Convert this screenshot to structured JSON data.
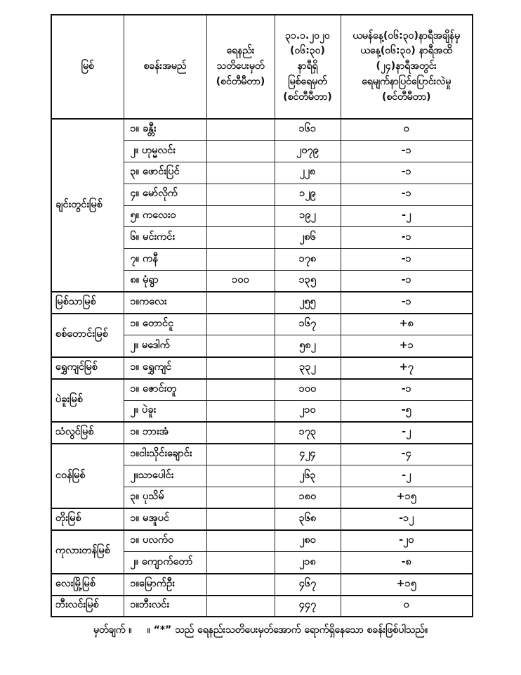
{
  "colors": {
    "background": "#ffffff",
    "text": "#111111",
    "border": "#111111"
  },
  "table": {
    "headers": {
      "col1": "မြစ်",
      "col2": "စခန်းအမည်",
      "col3": "ရေနည်း\nသတိပေးမှတ်\n(စင်တီမီတာ)",
      "col4": "၃၁.၁.၂၀၂၀\n(၀၆:၃၀)\nနာရီရှိ\nမြစ်ရေမှတ်\n(စင်တီမီတာ)",
      "col5": "ယမန်နေ့(၀၆:၃၀)နာရီအချိန်မှ\nယနေ့(၀၆:၃၀) နာရီအထိ\n(၂၄)နာရီအတွင်း\nရေမျက်နာပြင်ပြောင်းလဲမှု\n(စင်တီမီတာ)"
    },
    "groups": [
      {
        "river": "ချင်းတွင်းမြစ်",
        "rows": [
          {
            "station": "၁။ ခန္တီး",
            "warning": "",
            "level": "၁၆၁",
            "change": "၀"
          },
          {
            "station": "၂။ ဟုမ္မလင်း",
            "warning": "",
            "level": "၂၀၇၉",
            "change": "-၁"
          },
          {
            "station": "၃။ ဖောင်းပြင်",
            "warning": "",
            "level": "၂၂၈",
            "change": "-၁"
          },
          {
            "station": "၄။ မော်လိုက်",
            "warning": "",
            "level": "၁၂၉",
            "change": "-၁"
          },
          {
            "station": "၅။ ကလေးဝ",
            "warning": "",
            "level": "၁၉၂",
            "change": "-၂"
          },
          {
            "station": "၆။ မင်းကင်း",
            "warning": "",
            "level": "၂၈၆",
            "change": "-၁"
          },
          {
            "station": "၇။ ကနီ",
            "warning": "",
            "level": "၁၇၈",
            "change": "-၁"
          },
          {
            "station": "၈။ မုံရွာ",
            "warning": "၁၀၀",
            "level": "၁၃၅",
            "change": "-၁"
          }
        ]
      },
      {
        "river": "မြစ်သာမြစ်",
        "rows": [
          {
            "station": "၁။ကလေး",
            "warning": "",
            "level": "၂၅၅",
            "change": "-၁"
          }
        ]
      },
      {
        "river": "စစ်တောင်းမြစ်",
        "rows": [
          {
            "station": "၁။ တောင်ငူ",
            "warning": "",
            "level": "၁၆၇",
            "change": "+၈"
          },
          {
            "station": "၂။ မဒေါက်",
            "warning": "",
            "level": "၅၈၂",
            "change": "+၁"
          }
        ]
      },
      {
        "river": "ရွှေကျင်မြစ်",
        "rows": [
          {
            "station": "၁။ ရွှေကျင်",
            "warning": "",
            "level": "၃၃၂",
            "change": "+၇"
          }
        ]
      },
      {
        "river": "ပဲခူးမြစ်",
        "rows": [
          {
            "station": "၁။ ဇောင်းတူ",
            "warning": "",
            "level": "၁၀၀",
            "change": "-၁"
          },
          {
            "station": "၂။ ပဲခူး",
            "warning": "",
            "level": "၂၁၀",
            "change": "-၅"
          }
        ]
      },
      {
        "river": "သံလွင်မြစ်",
        "rows": [
          {
            "station": "၁။ ဘားအံ",
            "warning": "",
            "level": "၁၇၃",
            "change": "-၂"
          }
        ]
      },
      {
        "river": "ငဝန်မြစ်",
        "rows": [
          {
            "station": "၁။ငါးသိုင်းချောင်း",
            "warning": "",
            "level": "၄၂၄",
            "change": "-၄"
          },
          {
            "station": "၂။သာပေါင်း",
            "warning": "",
            "level": "၂၆၃",
            "change": "-၂"
          },
          {
            "station": "၃။ ပုသိမ်",
            "warning": "",
            "level": "၁၈၀",
            "change": "+၁၅"
          }
        ]
      },
      {
        "river": "တိုးမြစ်",
        "rows": [
          {
            "station": "၁။ မအူပင်",
            "warning": "",
            "level": "၃၆၈",
            "change": "-၁၂"
          }
        ]
      },
      {
        "river": "ကုလားတန်မြစ်",
        "rows": [
          {
            "station": "၁။ ပလက်ဝ",
            "warning": "",
            "level": "၂၈၀",
            "change": "-၂၀"
          },
          {
            "station": "၂။ ကျောက်တော်",
            "warning": "",
            "level": "၂၁၈",
            "change": "-၈"
          }
        ]
      },
      {
        "river": "လေးမြို့မြစ်",
        "rows": [
          {
            "station": "၁။မြောက်ဦး",
            "warning": "",
            "level": "၄၆၇",
            "change": "+၁၅"
          }
        ]
      },
      {
        "river": "ဘီးလင်းမြစ်",
        "rows": [
          {
            "station": "၁။ဘီးလင်း",
            "warning": "",
            "level": "၄၄၇",
            "change": "၀"
          }
        ]
      }
    ]
  },
  "footer": {
    "label": "မှတ်ချက် ။",
    "text": "။ “*” သည် ရေနည်းသတိပေးမှတ်အောက် ရောက်ရှိနေသော စခန်းဖြစ်ပါသည်။"
  }
}
